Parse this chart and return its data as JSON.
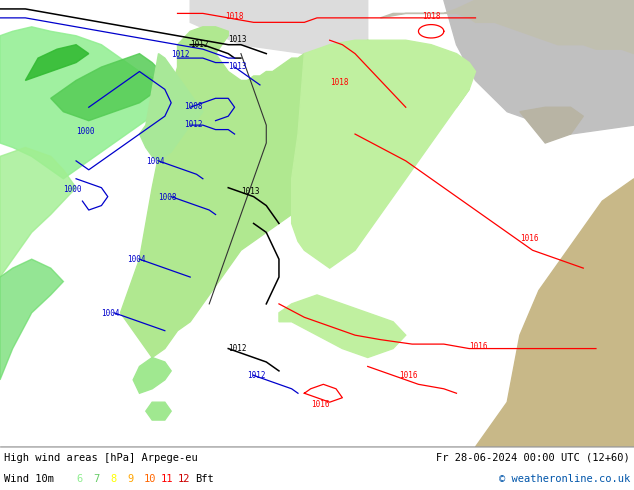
{
  "title_left": "High wind areas [hPa] Arpege-eu",
  "title_right": "Fr 28-06-2024 00:00 UTC (12+60)",
  "subtitle_left": "Wind 10m",
  "bft_colors": [
    "#90ee90",
    "#66cc66",
    "#ffff00",
    "#ffa500",
    "#ff6600",
    "#ff0000",
    "#cc0000"
  ],
  "copyright": "© weatheronline.co.uk",
  "bg_color": "#ffffff",
  "sea_color": "#e8e8e8",
  "land_green": "#90ee90",
  "land_green2": "#b8f0b0",
  "land_light": "#d8f8d0",
  "wind_green_dark": "#32cd32",
  "wind_green_med": "#7cfc00",
  "wind_green_light": "#90ee90",
  "gray_bg": "#c8c8c8",
  "gray_land": "#b0a888",
  "footer_bg": "#ffffff",
  "footer_text_color": "#000000",
  "isobar_red": "#ff0000",
  "isobar_black": "#000000",
  "isobar_blue": "#0000cc",
  "border_color": "#333333",
  "copyright_color": "#0055aa"
}
